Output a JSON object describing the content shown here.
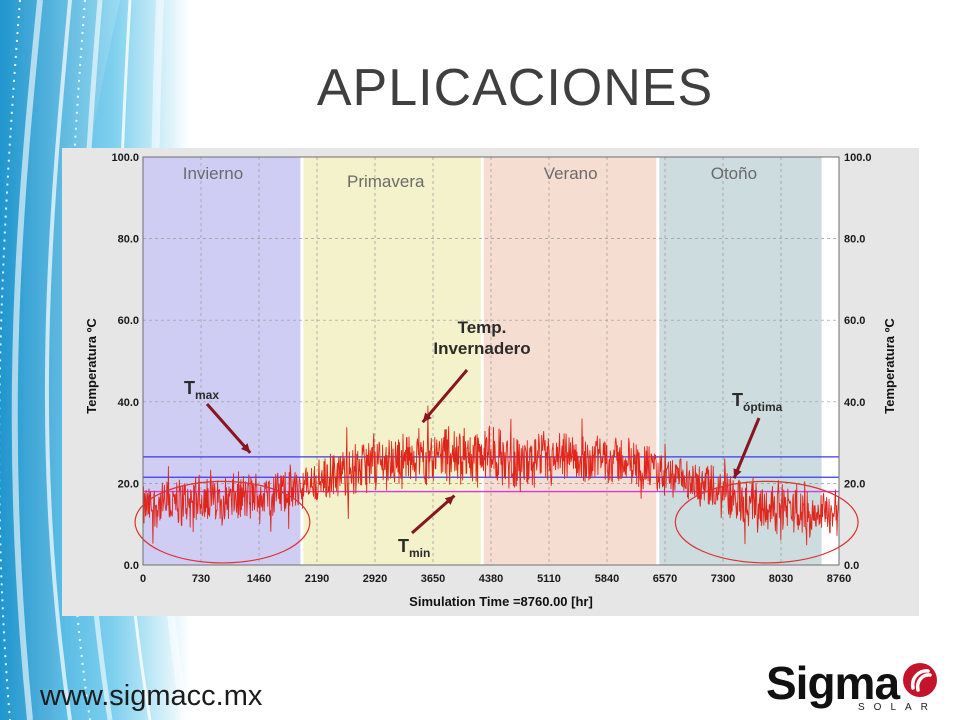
{
  "slide": {
    "title": "APLICACIONES",
    "website": "www.sigmacc.mx",
    "logo": {
      "word": "Sigma",
      "sub": "SOLAR",
      "mark_icon": "sigma-swirl-icon",
      "mark_color": "#c4142b"
    }
  },
  "chart_data": {
    "type": "line",
    "title": "",
    "xlabel": "Simulation Time =8760.00 [hr]",
    "ylabel": "Temperatura ºC",
    "ylabel_right": "Temperatura ºC",
    "xlim": [
      0,
      8760
    ],
    "ylim": [
      0,
      100
    ],
    "xticks": [
      0,
      730,
      1460,
      2190,
      2920,
      3650,
      4380,
      5110,
      5840,
      6570,
      7300,
      8030,
      8760
    ],
    "xtick_labels": [
      "0",
      "730",
      "1460",
      "2190",
      "2920",
      "3650",
      "4380",
      "5110",
      "5840",
      "6570",
      "7300",
      "8030",
      "8760"
    ],
    "yticks": [
      0,
      20,
      40,
      60,
      80,
      100
    ],
    "ytick_labels": [
      "0.0",
      "20.0",
      "40.0",
      "60.0",
      "80.0",
      "100.0"
    ],
    "grid": true,
    "seasons": [
      {
        "name": "Invierno",
        "start": 0,
        "end": 2000,
        "color": "#cfcdf3"
      },
      {
        "name": "Primavera",
        "start": 2000,
        "end": 4270,
        "color": "#f3f2cb"
      },
      {
        "name": "Verano",
        "start": 4270,
        "end": 6480,
        "color": "#f6ddd2"
      },
      {
        "name": "Otoño",
        "start": 6480,
        "end": 8560,
        "color": "#ccdcdf"
      }
    ],
    "hlines": [
      {
        "y": 26.5,
        "color": "#3a3af0"
      },
      {
        "y": 21.5,
        "color": "#3a3af0"
      },
      {
        "y": 18,
        "color": "#d43bd4"
      }
    ],
    "series": [
      {
        "color": "#e0251b",
        "x": [
          0,
          365,
          730,
          1095,
          1460,
          1825,
          2190,
          2555,
          2920,
          3285,
          3650,
          4015,
          4380,
          4745,
          5110,
          5475,
          5840,
          6205,
          6570,
          6935,
          7300,
          7665,
          8030,
          8395,
          8760
        ],
        "y": [
          14,
          15,
          16,
          16,
          17,
          18,
          20,
          23,
          25,
          26,
          27,
          27,
          27,
          25,
          25,
          26,
          26,
          25,
          22,
          20,
          17,
          15,
          14,
          13,
          13
        ],
        "band": [
          6,
          7,
          7,
          7,
          7,
          7,
          6,
          7,
          8,
          8,
          8,
          9,
          8,
          8,
          8,
          7,
          7,
          7,
          6,
          6,
          7,
          7,
          7,
          6,
          6
        ]
      }
    ],
    "annotations": [
      {
        "label": "T",
        "sub": "max",
        "x": 1350,
        "y": 27
      },
      {
        "label": "Temp.",
        "label2": "Invernadero",
        "x": 3520,
        "y": 35
      },
      {
        "label": "T",
        "sub": "min",
        "x": 3920,
        "y": 17.5
      },
      {
        "label": "T",
        "sub": "óptima",
        "x": 7440,
        "y": 22
      }
    ],
    "ellipses": [
      {
        "x": 1000,
        "y": 10.5,
        "rx": 1100,
        "ry": 10,
        "color": "#e03030"
      },
      {
        "x": 7850,
        "y": 10.5,
        "rx": 1150,
        "ry": 10,
        "color": "#e03030"
      }
    ]
  }
}
